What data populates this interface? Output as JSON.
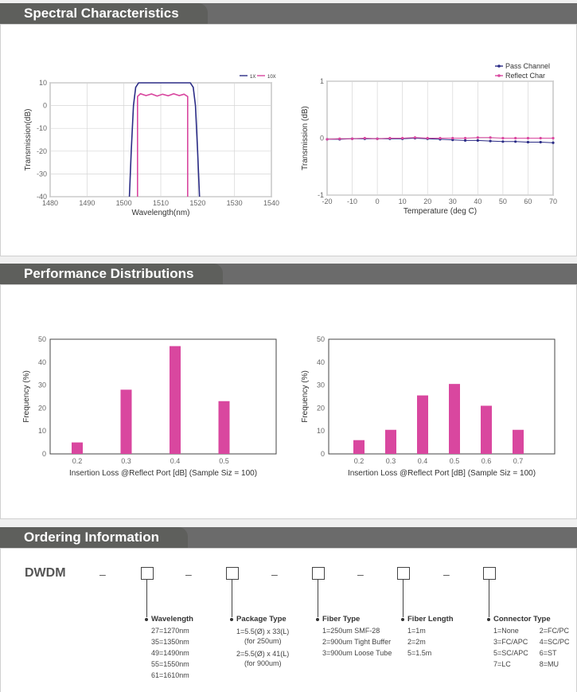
{
  "sections": {
    "spectral": "Spectral Characteristics",
    "performance": "Performance Distributions",
    "ordering": "Ordering Information"
  },
  "chart_data": [
    {
      "type": "line",
      "xlabel": "Wavelength(nm)",
      "ylabel": "Transmission(dB)",
      "xlim": [
        1480,
        1540
      ],
      "ylim": [
        -40,
        10
      ],
      "xticks": [
        1480,
        1490,
        1500,
        1510,
        1520,
        1530,
        1540
      ],
      "yticks": [
        10,
        0,
        -10,
        -20,
        -30,
        -40
      ],
      "grid": true,
      "legend_position": "top-right",
      "series": [
        {
          "name": "1X",
          "color": "#2b2c86",
          "x": [
            1501.5,
            1502.0,
            1502.6,
            1503.2,
            1504.0,
            1518.0,
            1518.8,
            1519.4,
            1520.0,
            1520.5
          ],
          "y": [
            -40,
            -20,
            0,
            8,
            10,
            10,
            8,
            0,
            -20,
            -40
          ]
        },
        {
          "name": "10X",
          "color": "#d9479f",
          "x": [
            1517.3,
            1517.3,
            1516.3,
            1515,
            1513.5,
            1512,
            1510.5,
            1509,
            1507.5,
            1506,
            1504.5,
            1503.7,
            1503.7
          ],
          "y": [
            -40,
            4,
            5.0,
            4.4,
            5.2,
            4.3,
            5.0,
            4.2,
            5.1,
            4.4,
            5.2,
            4,
            -40
          ]
        }
      ]
    },
    {
      "type": "line",
      "xlabel": "Temperature (deg C)",
      "ylabel": "Transmission (dB)",
      "xlim": [
        -20,
        70
      ],
      "ylim": [
        -1,
        1
      ],
      "xticks": [
        -20,
        -10,
        0,
        10,
        20,
        30,
        40,
        50,
        60,
        70
      ],
      "yticks": [
        1,
        0,
        -1
      ],
      "grid": true,
      "legend_position": "top-right",
      "series": [
        {
          "name": "Pass Channel",
          "color": "#2b2c86",
          "x": [
            -20,
            -15,
            -10,
            -5,
            0,
            5,
            10,
            15,
            20,
            25,
            30,
            35,
            40,
            45,
            50,
            55,
            60,
            65,
            70
          ],
          "y": [
            -0.02,
            -0.02,
            -0.01,
            -0.01,
            -0.01,
            -0.01,
            -0.01,
            0.0,
            -0.01,
            -0.02,
            -0.03,
            -0.04,
            -0.04,
            -0.05,
            -0.06,
            -0.06,
            -0.07,
            -0.07,
            -0.08
          ]
        },
        {
          "name": "Reflect Char",
          "color": "#d9479f",
          "x": [
            -20,
            -15,
            -10,
            -5,
            0,
            5,
            10,
            15,
            20,
            25,
            30,
            35,
            40,
            45,
            50,
            55,
            60,
            65,
            70
          ],
          "y": [
            -0.02,
            -0.01,
            -0.01,
            0.0,
            -0.01,
            0.0,
            0.0,
            0.01,
            0.0,
            0.0,
            0.0,
            0.0,
            0.01,
            0.01,
            0.0,
            0.0,
            0.0,
            0.0,
            0.0
          ]
        }
      ]
    },
    {
      "type": "bar",
      "xlabel": "Insertion Loss @Reflect Port [dB] (Sample Siz  = 100)",
      "ylabel": "Frequency (%)",
      "categories": [
        "0.2",
        "0.3",
        "0.4",
        "0.5"
      ],
      "values": [
        5,
        28,
        47,
        23
      ],
      "ylim": [
        0,
        50
      ],
      "yticks": [
        0,
        10,
        20,
        30,
        40,
        50
      ],
      "color": "#d9479f"
    },
    {
      "type": "bar",
      "xlabel": "Insertion Loss @Reflect Port [dB] (Sample Siz  = 100)",
      "ylabel": "Frequency (%)",
      "categories": [
        "0.2",
        "0.3",
        "0.4",
        "0.5",
        "0.6",
        "0.7"
      ],
      "values": [
        6,
        10.5,
        25.5,
        30.5,
        21,
        10.5
      ],
      "ylim": [
        0,
        50
      ],
      "yticks": [
        0,
        10,
        20,
        30,
        40,
        50
      ],
      "color": "#d9479f"
    }
  ],
  "ordering": {
    "prefix": "DWDM",
    "dash": "–",
    "columns": [
      {
        "title": "Wavelength",
        "items": [
          "27=1270nm",
          "35=1350nm",
          "49=1490nm",
          "55=1550nm",
          "61=1610nm"
        ]
      },
      {
        "title": "Package Type",
        "items": [
          "1=5.5(Ø) x 33(L)",
          "(for 250um)",
          "2=5.5(Ø) x 41(L)",
          "(for 900um)"
        ]
      },
      {
        "title": "Fiber Type",
        "items": [
          "1=250um SMF-28",
          "2=900um Tight Buffer",
          "3=900um Loose Tube"
        ]
      },
      {
        "title": "Fiber Length",
        "items": [
          "1=1m",
          "2=2m",
          "5=1.5m"
        ]
      },
      {
        "title": "Connector Type",
        "items": [
          "1=None",
          "2=FC/PC",
          "3=FC/APC",
          "4=SC/PC",
          "5=SC/APC",
          "6=ST",
          "7=LC",
          "8=MU"
        ]
      }
    ]
  }
}
